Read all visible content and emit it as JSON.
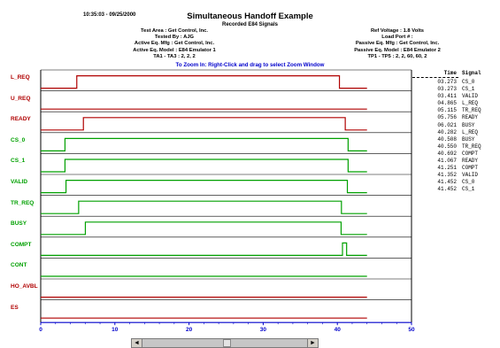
{
  "header": {
    "timestamp": "10:35:03 - 09/25/2000",
    "title": "Simultaneous Handoff Example",
    "subtitle": "Recorded E84 Signals",
    "left_lines": [
      "Test Area : Get Control, Inc.",
      "Tested By : AJG",
      "Active Eq. Mfg : Get Control, Inc.",
      "Active Eq. Model : E84 Emulator 1",
      "TA1 - TA3 : 2, 2, 2"
    ],
    "right_lines": [
      "Ref Voltage : 1.8 Volts",
      "Load Port # :",
      "Passive Eq. Mfg : Get Control, Inc.",
      "Passive Eq. Model : E84 Emulator 2",
      "TP1 - TP5 : 2, 2, 60, 60, 2"
    ],
    "zoom_hint": "To Zoom In:  Right-Click and drag to select Zoom Window"
  },
  "signals": [
    {
      "label": "L_REQ",
      "color": "#b00000",
      "init": 0,
      "transitions": [
        4.865,
        40.282
      ]
    },
    {
      "label": "U_REQ",
      "color": "#b00000",
      "init": 0,
      "transitions": []
    },
    {
      "label": "READY",
      "color": "#b00000",
      "init": 0,
      "transitions": [
        5.756,
        41.067
      ]
    },
    {
      "label": "CS_0",
      "color": "#00a000",
      "init": 0,
      "transitions": [
        3.273,
        41.452
      ]
    },
    {
      "label": "CS_1",
      "color": "#00a000",
      "init": 0,
      "transitions": [
        3.273,
        41.452
      ]
    },
    {
      "label": "VALID",
      "color": "#00a000",
      "init": 0,
      "transitions": [
        3.411,
        41.352
      ]
    },
    {
      "label": "TR_REQ",
      "color": "#00a000",
      "init": 0,
      "transitions": [
        5.115,
        40.55
      ]
    },
    {
      "label": "BUSY",
      "color": "#00a000",
      "init": 0,
      "transitions": [
        6.021,
        40.508
      ]
    },
    {
      "label": "COMPT",
      "color": "#00a000",
      "init": 0,
      "transitions": [
        40.692,
        41.251
      ]
    },
    {
      "label": "CONT",
      "color": "#00a000",
      "init": 0,
      "transitions": []
    },
    {
      "label": "HO_AVBL",
      "color": "#b00000",
      "init": 0,
      "transitions": []
    },
    {
      "label": "ES",
      "color": "#b00000",
      "init": 0,
      "transitions": []
    }
  ],
  "axis": {
    "min": 0,
    "max": 50,
    "ticks": [
      "0",
      "10",
      "20",
      "30",
      "40",
      "50"
    ],
    "color": "#0000cc"
  },
  "events": {
    "headers": [
      "Time",
      "Signal"
    ],
    "rows": [
      [
        "03.273",
        "CS_0"
      ],
      [
        "03.273",
        "CS_1"
      ],
      [
        "03.411",
        "VALID"
      ],
      [
        "04.865",
        "L_REQ"
      ],
      [
        "05.115",
        "TR_REQ"
      ],
      [
        "05.756",
        "READY"
      ],
      [
        "06.021",
        "BUSY"
      ],
      [
        "40.282",
        "L_REQ"
      ],
      [
        "40.508",
        "BUSY"
      ],
      [
        "40.550",
        "TR_REQ"
      ],
      [
        "40.692",
        "COMPT"
      ],
      [
        "41.067",
        "READY"
      ],
      [
        "41.251",
        "COMPT"
      ],
      [
        "41.352",
        "VALID"
      ],
      [
        "41.452",
        "CS_0"
      ],
      [
        "41.452",
        "CS_1"
      ]
    ]
  },
  "scrollbar": {
    "left_arrow": "◄",
    "right_arrow": "►"
  }
}
